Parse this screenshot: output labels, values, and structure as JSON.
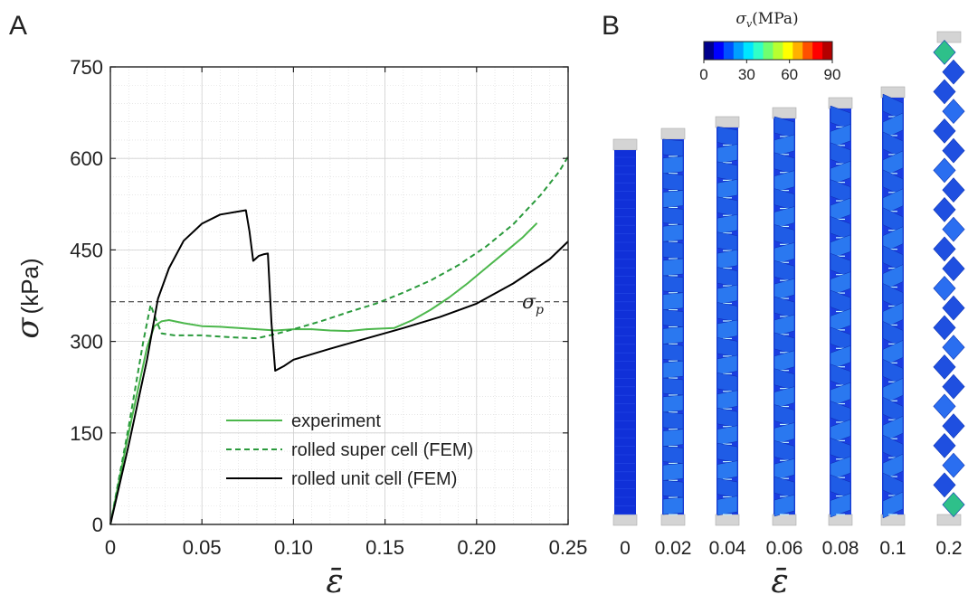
{
  "panel_a_label": "A",
  "panel_b_label": "B",
  "chart_data": [
    {
      "type": "line",
      "ylabel_symbol": "σ",
      "ylabel_unit": "(kPa)",
      "xlabel": "ε̄",
      "xlim": [
        0,
        0.25
      ],
      "ylim": [
        0,
        750
      ],
      "xticks": [
        0,
        0.05,
        0.1,
        0.15,
        0.2,
        0.25
      ],
      "xtick_labels": [
        "0",
        "0.05",
        "0.10",
        "0.15",
        "0.20",
        "0.25"
      ],
      "yticks": [
        0,
        150,
        300,
        450,
        600,
        750
      ],
      "ytick_labels": [
        "0",
        "150",
        "300",
        "450",
        "600",
        "750"
      ],
      "grid": true,
      "legend_position": "bottom-right",
      "reference_line": {
        "y": 365,
        "label": "σ_p",
        "label_main": "σ",
        "label_sub": "p",
        "style": "dashed"
      },
      "series": [
        {
          "name": "experiment",
          "color": "#4cb74c",
          "style": "solid",
          "points": [
            [
              0,
              0
            ],
            [
              0.01,
              150
            ],
            [
              0.02,
              290
            ],
            [
              0.024,
              325
            ],
            [
              0.028,
              333
            ],
            [
              0.032,
              335
            ],
            [
              0.04,
              330
            ],
            [
              0.05,
              325
            ],
            [
              0.06,
              324
            ],
            [
              0.07,
              322
            ],
            [
              0.08,
              320
            ],
            [
              0.09,
              318
            ],
            [
              0.1,
              320
            ],
            [
              0.11,
              320
            ],
            [
              0.12,
              318
            ],
            [
              0.13,
              317
            ],
            [
              0.14,
              320
            ],
            [
              0.155,
              322
            ],
            [
              0.165,
              335
            ],
            [
              0.175,
              352
            ],
            [
              0.185,
              372
            ],
            [
              0.195,
              395
            ],
            [
              0.205,
              420
            ],
            [
              0.215,
              445
            ],
            [
              0.225,
              470
            ],
            [
              0.233,
              494
            ]
          ]
        },
        {
          "name": "rolled super cell (FEM)",
          "color": "#2a9a3c",
          "style": "dashed",
          "points": [
            [
              0,
              0
            ],
            [
              0.01,
              160
            ],
            [
              0.018,
              300
            ],
            [
              0.022,
              360
            ],
            [
              0.025,
              335
            ],
            [
              0.028,
              313
            ],
            [
              0.035,
              310
            ],
            [
              0.05,
              310
            ],
            [
              0.065,
              307
            ],
            [
              0.08,
              305
            ],
            [
              0.09,
              312
            ],
            [
              0.1,
              320
            ],
            [
              0.115,
              333
            ],
            [
              0.13,
              348
            ],
            [
              0.145,
              362
            ],
            [
              0.16,
              380
            ],
            [
              0.175,
              400
            ],
            [
              0.19,
              425
            ],
            [
              0.205,
              455
            ],
            [
              0.22,
              492
            ],
            [
              0.235,
              540
            ],
            [
              0.245,
              578
            ],
            [
              0.25,
              603
            ]
          ]
        },
        {
          "name": "rolled unit cell (FEM)",
          "color": "#000000",
          "style": "solid",
          "points": [
            [
              0,
              0
            ],
            [
              0.01,
              130
            ],
            [
              0.02,
              270
            ],
            [
              0.026,
              370
            ],
            [
              0.032,
              420
            ],
            [
              0.04,
              465
            ],
            [
              0.05,
              493
            ],
            [
              0.06,
              508
            ],
            [
              0.07,
              513
            ],
            [
              0.074,
              515
            ],
            [
              0.076,
              480
            ],
            [
              0.078,
              432
            ],
            [
              0.081,
              440
            ],
            [
              0.084,
              443
            ],
            [
              0.086,
              444
            ],
            [
              0.088,
              330
            ],
            [
              0.09,
              252
            ],
            [
              0.095,
              260
            ],
            [
              0.1,
              270
            ],
            [
              0.12,
              288
            ],
            [
              0.14,
              305
            ],
            [
              0.16,
              322
            ],
            [
              0.18,
              340
            ],
            [
              0.2,
              362
            ],
            [
              0.22,
              395
            ],
            [
              0.24,
              435
            ],
            [
              0.25,
              464
            ]
          ]
        }
      ]
    },
    {
      "type": "heatmap",
      "colorbar_label_main": "σ",
      "colorbar_label_sub": "v",
      "colorbar_label_unit": "(MPa)",
      "colorbar_ticks": [
        "0",
        "30",
        "60",
        "90"
      ],
      "colorbar_colors": [
        "#00008c",
        "#0000ff",
        "#0050ff",
        "#00a0ff",
        "#00e6ff",
        "#30ffc8",
        "#70ff70",
        "#b8ff30",
        "#ffff00",
        "#ffb000",
        "#ff5000",
        "#ff0000",
        "#b40000"
      ],
      "strain_labels": [
        "0",
        "0.02",
        "0.04",
        "0.06",
        "0.08",
        "0.1",
        "0.2"
      ],
      "xlabel": "ε̄"
    }
  ]
}
